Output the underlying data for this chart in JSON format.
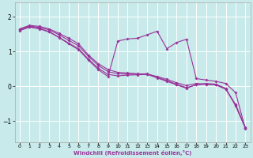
{
  "background_color": "#c8eaea",
  "grid_color": "#ffffff",
  "line_color": "#993399",
  "xlabel": "Windchill (Refroidissement éolien,°C)",
  "xlim": [
    -0.5,
    23.5
  ],
  "ylim": [
    -1.6,
    2.4
  ],
  "yticks": [
    -1,
    0,
    1,
    2
  ],
  "xticks": [
    0,
    1,
    2,
    3,
    4,
    5,
    6,
    7,
    8,
    9,
    10,
    11,
    12,
    13,
    14,
    15,
    16,
    17,
    18,
    19,
    20,
    21,
    22,
    23
  ],
  "series": [
    [
      1.65,
      1.75,
      1.72,
      1.65,
      1.52,
      1.38,
      1.22,
      0.9,
      0.65,
      0.48,
      0.4,
      0.38,
      0.36,
      0.35,
      0.28,
      0.2,
      0.1,
      0.02,
      0.08,
      0.06,
      0.04,
      -0.08,
      -0.52,
      -1.18
    ],
    [
      1.63,
      1.73,
      1.69,
      1.62,
      1.48,
      1.32,
      1.16,
      0.86,
      0.6,
      0.42,
      0.36,
      0.35,
      0.35,
      0.36,
      0.26,
      0.16,
      0.06,
      -0.04,
      0.04,
      0.06,
      0.04,
      -0.08,
      -0.54,
      -1.2
    ],
    [
      1.6,
      1.7,
      1.65,
      1.56,
      1.4,
      1.22,
      1.05,
      0.75,
      0.48,
      0.28,
      1.3,
      1.36,
      1.38,
      1.48,
      1.58,
      1.08,
      1.26,
      1.35,
      0.22,
      0.18,
      0.14,
      0.08,
      -0.18,
      -1.22
    ],
    [
      1.61,
      1.71,
      1.66,
      1.57,
      1.41,
      1.24,
      1.08,
      0.78,
      0.52,
      0.34,
      0.3,
      0.32,
      0.33,
      0.34,
      0.24,
      0.14,
      0.04,
      -0.06,
      0.05,
      0.08,
      0.06,
      -0.06,
      -0.56,
      -1.2
    ]
  ]
}
